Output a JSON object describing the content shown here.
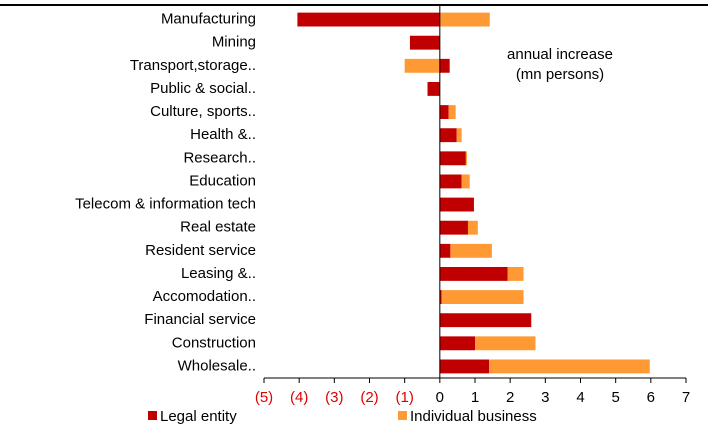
{
  "chart_data": {
    "type": "stacked_barh",
    "annotation": [
      "annual increase",
      "(mn persons)"
    ],
    "categories": [
      "Manufacturing",
      "Mining",
      "Transport,storage..",
      "Public & social..",
      "Culture, sports..",
      "Health &..",
      "Research..",
      "Education",
      "Telecom & information tech",
      "Real estate",
      "Resident service",
      "Leasing &..",
      "Accomodation..",
      "Financial service",
      "Construction",
      "Wholesale.."
    ],
    "series": [
      {
        "name": "Legal entity",
        "color": "#c00000",
        "values": [
          -4.05,
          -0.85,
          0.28,
          -0.35,
          0.25,
          0.48,
          0.74,
          0.62,
          0.97,
          0.8,
          0.3,
          1.93,
          0.05,
          2.6,
          1.0,
          1.4
        ]
      },
      {
        "name": "Individual business",
        "color": "#ff9933",
        "values": [
          1.42,
          0,
          -1.0,
          0,
          0.2,
          0.14,
          0.03,
          0.23,
          0,
          0.28,
          1.18,
          0.45,
          2.33,
          0,
          1.72,
          4.57
        ]
      }
    ],
    "xlim": [
      -5,
      7
    ],
    "xticks": [
      {
        "value": -5,
        "label": "(5)"
      },
      {
        "value": -4,
        "label": "(4)"
      },
      {
        "value": -3,
        "label": "(3)"
      },
      {
        "value": -2,
        "label": "(2)"
      },
      {
        "value": -1,
        "label": "(1)"
      },
      0,
      1,
      2,
      3,
      4,
      5,
      6,
      7
    ],
    "negative_tick_color": "#e00000",
    "legend": "bottom"
  }
}
